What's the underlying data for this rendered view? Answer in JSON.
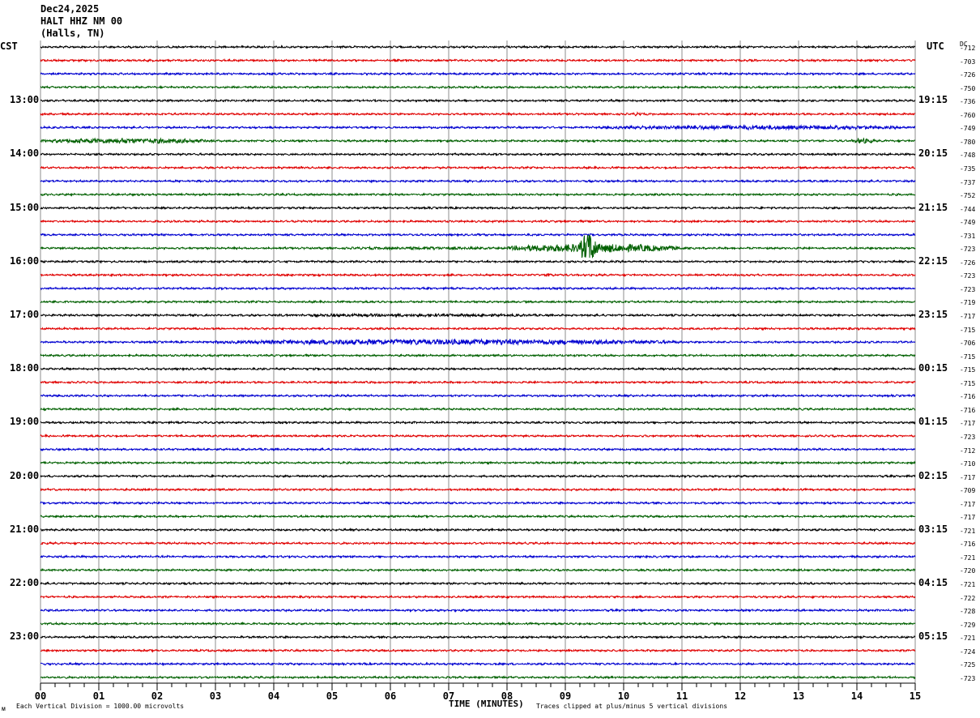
{
  "header": {
    "date": "Dec24,2025",
    "station": "HALT HHZ NM 00",
    "location": "(Halls, TN)"
  },
  "axis_labels": {
    "left_timezone": "CST",
    "right_timezone": "UTC",
    "dc_label": "DC",
    "x_title": "TIME (MINUTES)"
  },
  "footer": {
    "scale_note": "Each Vertical Division = 1000.00 microvolts",
    "clip_note": "Traces clipped at plus/minus 5 vertical divisions",
    "corner_mark": "ᴍ"
  },
  "colors": {
    "trace_cycle": [
      "#000000",
      "#e00000",
      "#0000d0",
      "#006000"
    ],
    "grid": "#8c8c8c"
  },
  "chart_data": {
    "type": "line",
    "description_type": "helicorder",
    "x_range": [
      0,
      15
    ],
    "x_tick_labels": [
      "00",
      "01",
      "02",
      "03",
      "04",
      "05",
      "06",
      "07",
      "08",
      "09",
      "10",
      "11",
      "12",
      "13",
      "14",
      "15"
    ],
    "traces_per_hour": 4,
    "trace_count": 48,
    "left_hour_labels": [
      "13:00",
      "14:00",
      "15:00",
      "16:00",
      "17:00",
      "18:00",
      "19:00",
      "20:00",
      "21:00",
      "22:00",
      "23:00"
    ],
    "right_hour_labels": [
      "19:15",
      "20:15",
      "21:15",
      "22:15",
      "23:15",
      "00:15",
      "01:15",
      "02:15",
      "03:15",
      "04:15",
      "05:15"
    ],
    "hour_label_first_trace": 4,
    "dc_offsets": [
      -712,
      -703,
      -726,
      -750,
      -736,
      -760,
      -749,
      -780,
      -748,
      -735,
      -737,
      -752,
      -744,
      -749,
      -731,
      -723,
      -726,
      -723,
      -723,
      -719,
      -717,
      -715,
      -706,
      -715,
      -715,
      -715,
      -716,
      -716,
      -717,
      -723,
      -712,
      -710,
      -717,
      -709,
      -717,
      -717,
      -721,
      -716,
      -721,
      -720,
      -721,
      -722,
      -728,
      -729,
      -721,
      -724,
      -725,
      -723
    ],
    "events": [
      {
        "trace": 5,
        "start": 10.15,
        "end": 10.35,
        "amp": 2.0
      },
      {
        "trace": 6,
        "start": 9.5,
        "end": 15.0,
        "amp": 2.5
      },
      {
        "trace": 7,
        "start": 0.0,
        "end": 3.0,
        "amp": 3.0
      },
      {
        "trace": 7,
        "start": 13.9,
        "end": 14.3,
        "amp": 3.0
      },
      {
        "trace": 15,
        "start": 5.0,
        "end": 8.0,
        "amp": 1.6
      },
      {
        "trace": 15,
        "start": 8.0,
        "end": 11.0,
        "amp": 5.0
      },
      {
        "trace": 15,
        "start": 9.25,
        "end": 9.55,
        "amp": 18.0
      },
      {
        "trace": 17,
        "start": 8.65,
        "end": 8.85,
        "amp": 2.0
      },
      {
        "trace": 20,
        "start": 3.5,
        "end": 9.0,
        "amp": 1.6
      },
      {
        "trace": 22,
        "start": 3.0,
        "end": 11.0,
        "amp": 3.2
      }
    ]
  }
}
